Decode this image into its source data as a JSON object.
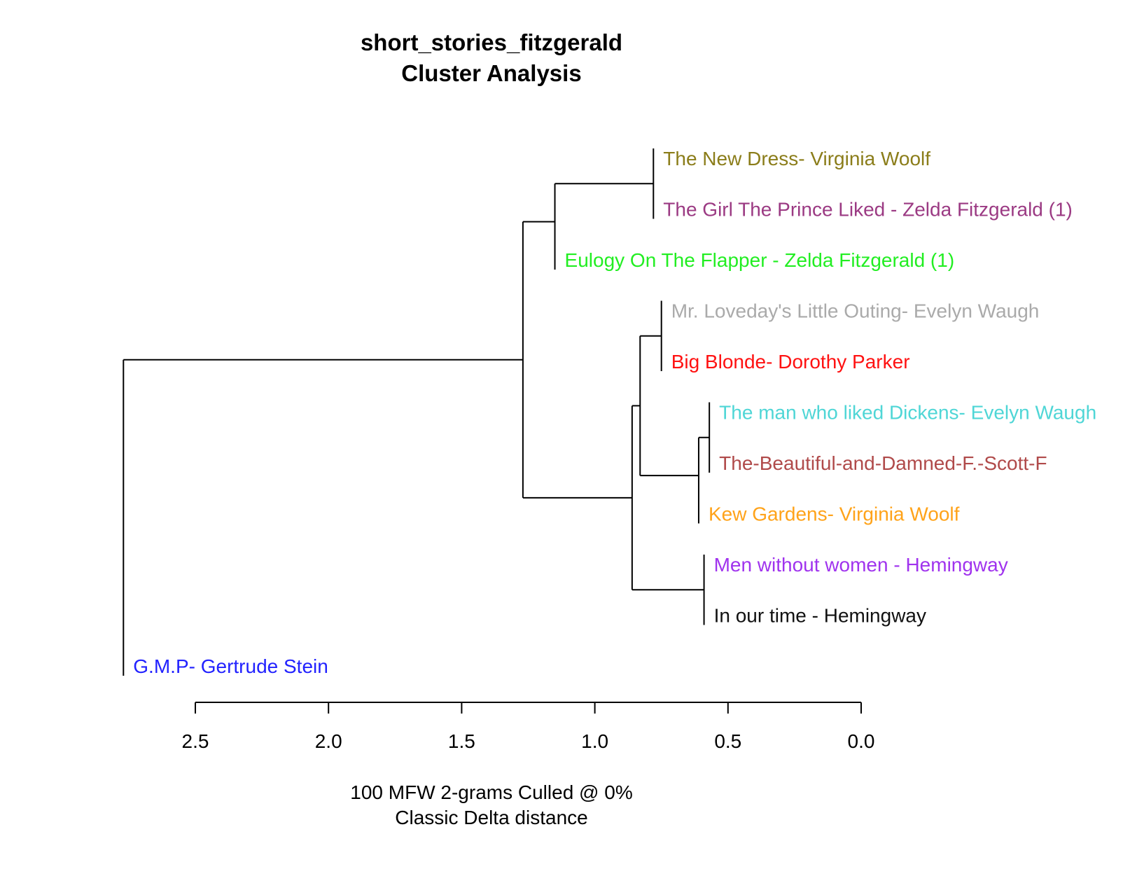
{
  "chart_data": {
    "type": "dendrogram",
    "title": "short_stories_fitzgerald",
    "subtitle": "Cluster Analysis",
    "xlabel_lines": [
      "100 MFW 2-grams Culled @ 0%",
      "Classic Delta distance"
    ],
    "xlim": [
      2.5,
      0.0
    ],
    "ticks": [
      "2.5",
      "2.0",
      "1.5",
      "1.0",
      "0.5",
      "0.0"
    ],
    "tick_values": [
      2.5,
      2.0,
      1.5,
      1.0,
      0.5,
      0.0
    ],
    "leaves": [
      {
        "label": "The New Dress- Virginia Woolf",
        "color": "#8b7d1a"
      },
      {
        "label": "The Girl The Prince Liked - Zelda Fitzgerald (1)",
        "color": "#9b3a83"
      },
      {
        "label": "Eulogy On The Flapper - Zelda Fitzgerald (1)",
        "color": "#22ee22"
      },
      {
        "label": "Mr. Loveday's Little Outing- Evelyn Waugh",
        "color": "#aaaaaa"
      },
      {
        "label": "Big Blonde- Dorothy Parker",
        "color": "#ff1111"
      },
      {
        "label": "The man who liked Dickens- Evelyn Waugh",
        "color": "#4fd6d6"
      },
      {
        "label": "The-Beautiful-and-Damned-F.-Scott-F",
        "color": "#b04a4a"
      },
      {
        "label": "Kew Gardens- Virginia Woolf",
        "color": "#ffa31a"
      },
      {
        "label": "Men without women - Hemingway",
        "color": "#a033ee"
      },
      {
        "label": "In our time - Hemingway",
        "color": "#111111"
      },
      {
        "label": "G.M.P- Gertrude Stein",
        "color": "#2222ff"
      }
    ],
    "merges": [
      {
        "id": "A",
        "children": [
          "L0",
          "L1"
        ],
        "height": 0.78
      },
      {
        "id": "B",
        "children": [
          "A",
          "L2"
        ],
        "height": 1.15
      },
      {
        "id": "C",
        "children": [
          "L3",
          "L4"
        ],
        "height": 0.75
      },
      {
        "id": "D",
        "children": [
          "L5",
          "L6"
        ],
        "height": 0.57
      },
      {
        "id": "E",
        "children": [
          "D",
          "L7"
        ],
        "height": 0.61
      },
      {
        "id": "F",
        "children": [
          "C",
          "E"
        ],
        "height": 0.83
      },
      {
        "id": "G",
        "children": [
          "L8",
          "L9"
        ],
        "height": 0.59
      },
      {
        "id": "H",
        "children": [
          "F",
          "G"
        ],
        "height": 0.86
      },
      {
        "id": "I",
        "children": [
          "B",
          "H"
        ],
        "height": 1.27
      },
      {
        "id": "J",
        "children": [
          "I",
          "L10"
        ],
        "height": 2.77
      }
    ]
  }
}
